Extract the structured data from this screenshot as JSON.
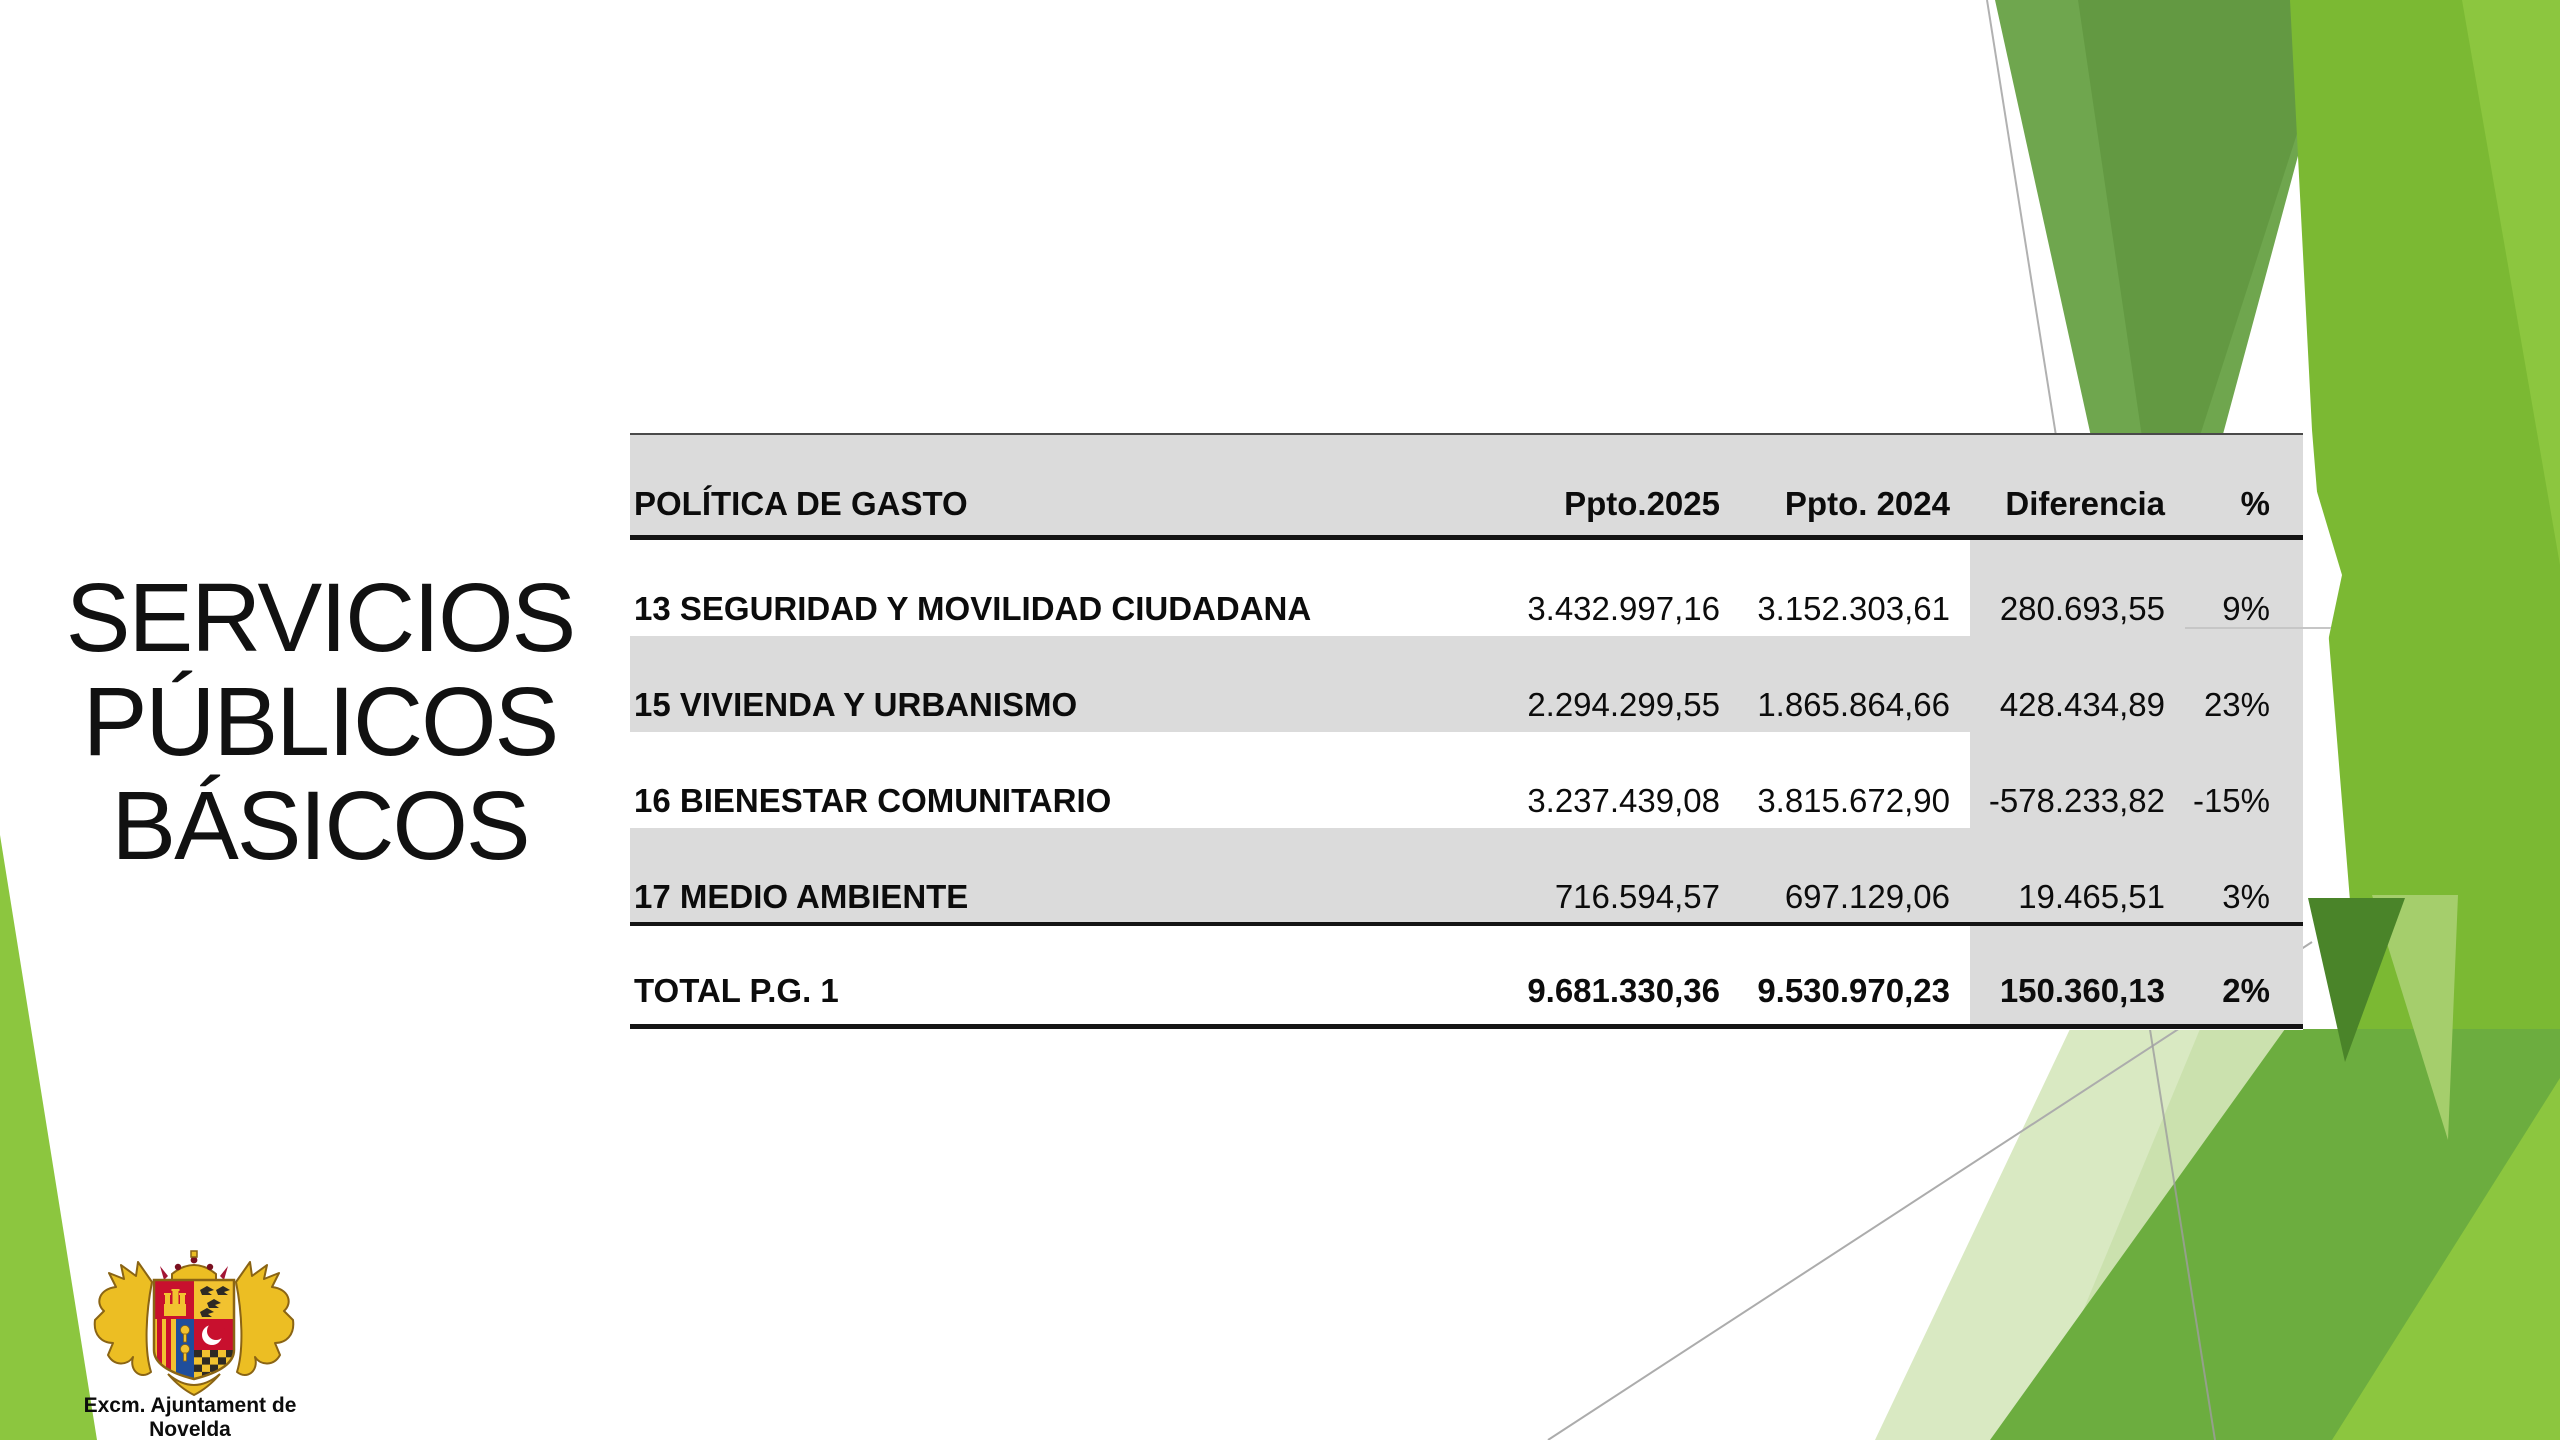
{
  "slide": {
    "title_lines": [
      "SERVICIOS",
      "PÚBLICOS",
      "BÁSICOS"
    ],
    "logo_caption": "Excm. Ajuntament de Novelda"
  },
  "table": {
    "columns": {
      "politica": "POLÍTICA DE GASTO",
      "p2025": "Ppto.2025",
      "p2024": "Ppto. 2024",
      "dif": "Diferencia",
      "pct": "%"
    },
    "rows": [
      {
        "label": "13 SEGURIDAD Y MOVILIDAD CIUDADANA",
        "p2025": "3.432.997,16",
        "p2024": "3.152.303,61",
        "dif": "280.693,55",
        "pct": "9%"
      },
      {
        "label": "15 VIVIENDA Y URBANISMO",
        "p2025": "2.294.299,55",
        "p2024": "1.865.864,66",
        "dif": "428.434,89",
        "pct": "23%"
      },
      {
        "label": "16 BIENESTAR COMUNITARIO",
        "p2025": "3.237.439,08",
        "p2024": "3.815.672,90",
        "dif": "-578.233,82",
        "pct": "-15%"
      },
      {
        "label": "17 MEDIO AMBIENTE",
        "p2025": "716.594,57",
        "p2024": "697.129,06",
        "dif": "19.465,51",
        "pct": "3%"
      }
    ],
    "total": {
      "label": "TOTAL P.G. 1",
      "p2025": "9.681.330,36",
      "p2024": "9.530.970,23",
      "dif": "150.360,13",
      "pct": "2%"
    }
  },
  "colors": {
    "table_band_gray": "#dbdbdb",
    "rule_black": "#141414",
    "green_sage": "#6fa64e",
    "green_sage_dark": "#629841",
    "green_bright": "#7bb933",
    "green_brighter": "#8cc63f",
    "green_medium": "#6cad3f",
    "green_dark": "#4a8429",
    "green_light": "#a5ce6c",
    "green_pale": "#d9e9c2",
    "green_pale_2": "#cbe1ae"
  }
}
